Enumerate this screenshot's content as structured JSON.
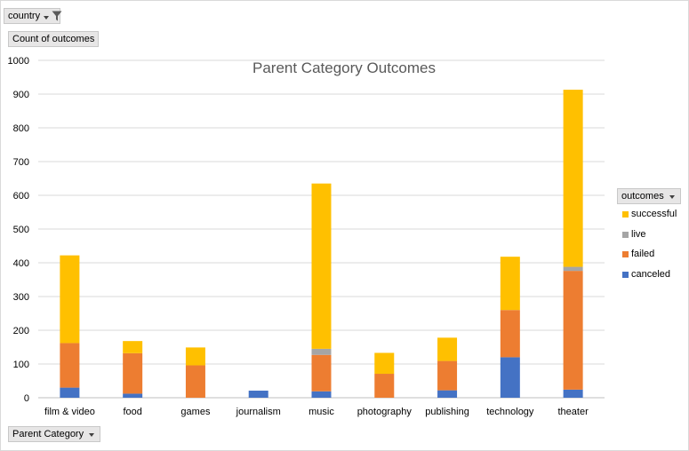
{
  "filter": {
    "country_label": "country"
  },
  "count_label": "Count of outcomes",
  "category_field_label": "Parent Category",
  "legend": {
    "title": "outcomes",
    "items": [
      {
        "name": "successful",
        "color": "#ffc000"
      },
      {
        "name": "live",
        "color": "#a5a5a5"
      },
      {
        "name": "failed",
        "color": "#ed7d31"
      },
      {
        "name": "canceled",
        "color": "#4472c4"
      }
    ]
  },
  "chart_data": {
    "type": "bar",
    "stacked": true,
    "title": "Parent Category Outcomes",
    "xlabel": "",
    "ylabel": "Count of outcomes",
    "ylim": [
      0,
      1000
    ],
    "yticks": [
      0,
      100,
      200,
      300,
      400,
      500,
      600,
      700,
      800,
      900,
      1000
    ],
    "categories": [
      "film & video",
      "food",
      "games",
      "journalism",
      "music",
      "photography",
      "publishing",
      "technology",
      "theater"
    ],
    "series": [
      {
        "name": "canceled",
        "color": "#4472c4",
        "values": [
          30,
          12,
          0,
          21,
          19,
          0,
          22,
          120,
          24
        ]
      },
      {
        "name": "failed",
        "color": "#ed7d31",
        "values": [
          132,
          120,
          96,
          0,
          108,
          71,
          87,
          140,
          352
        ]
      },
      {
        "name": "live",
        "color": "#a5a5a5",
        "values": [
          0,
          0,
          0,
          0,
          18,
          0,
          0,
          0,
          12
        ]
      },
      {
        "name": "successful",
        "color": "#ffc000",
        "values": [
          260,
          36,
          53,
          0,
          490,
          62,
          69,
          158,
          525
        ]
      }
    ],
    "grid": true,
    "legend_position": "right"
  }
}
